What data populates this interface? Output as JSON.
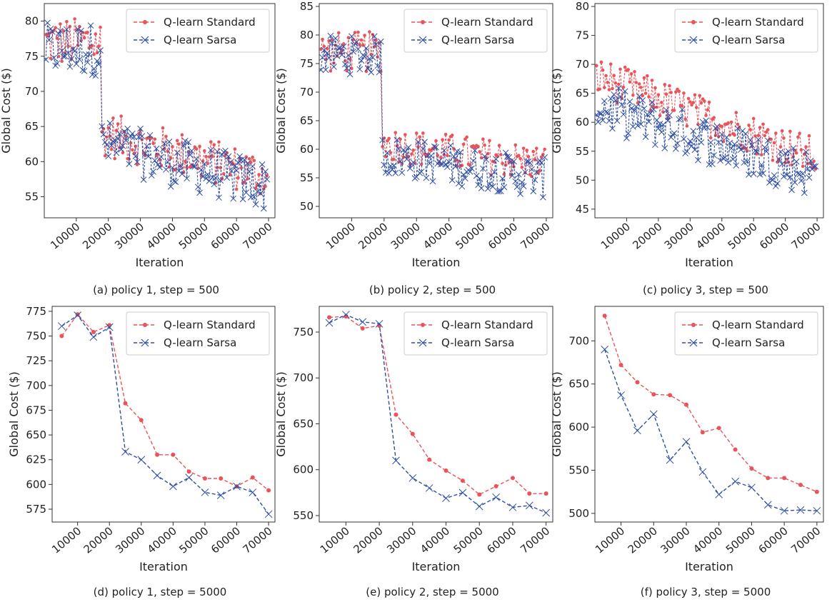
{
  "colors": {
    "standard": "#e8545a",
    "sarsa": "#2f4fa6",
    "frame": "#333333"
  },
  "chart_data": [
    {
      "type": "line",
      "caption": "(a) policy 1, step = 500",
      "xlabel": "Iteration",
      "ylabel": "Global Cost ($)",
      "xlim": [
        0,
        72000
      ],
      "ylim": [
        52,
        82.5
      ],
      "xticks": [
        10000,
        20000,
        30000,
        40000,
        50000,
        60000,
        70000
      ],
      "yticks": [
        55,
        60,
        65,
        70,
        75,
        80
      ],
      "legend": "top-right",
      "marker_every": 1,
      "series_source": {
        "kind": "sampled",
        "count": 139,
        "x_start": 500,
        "x_step": 500,
        "segments": [
          {
            "n": 35,
            "std": {
              "base": 77,
              "amp": 3.5,
              "trend": 0
            },
            "sarsa": {
              "base": 76,
              "amp": 3.8,
              "trend": 0
            }
          },
          {
            "n": 104,
            "std": {
              "base": 64,
              "amp": 3.2,
              "trend": -6
            },
            "sarsa": {
              "base": 62.5,
              "amp": 3.6,
              "trend": -6
            }
          }
        ]
      },
      "series": [
        {
          "name": "Q-learn Standard",
          "marker": "dot",
          "values": []
        },
        {
          "name": "Q-learn Sarsa",
          "marker": "x",
          "values": []
        }
      ]
    },
    {
      "type": "line",
      "caption": "(b) policy 2, step = 500",
      "xlabel": "Iteration",
      "ylabel": "Global Cost ($)",
      "xlim": [
        0,
        72000
      ],
      "ylim": [
        48,
        85.5
      ],
      "xticks": [
        10000,
        20000,
        30000,
        40000,
        50000,
        60000,
        70000
      ],
      "yticks": [
        50,
        55,
        60,
        65,
        70,
        75,
        80,
        85
      ],
      "legend": "top-right",
      "marker_every": 1,
      "series_source": {
        "kind": "sampled",
        "count": 139,
        "x_start": 500,
        "x_step": 500,
        "segments": [
          {
            "n": 38,
            "std": {
              "base": 77,
              "amp": 3.6,
              "trend": 0
            },
            "sarsa": {
              "base": 76.5,
              "amp": 3.4,
              "trend": 0
            }
          },
          {
            "n": 101,
            "std": {
              "base": 61,
              "amp": 3.2,
              "trend": -3.5
            },
            "sarsa": {
              "base": 59,
              "amp": 3.6,
              "trend": -4
            }
          }
        ]
      },
      "series": [
        {
          "name": "Q-learn Standard",
          "marker": "dot",
          "values": []
        },
        {
          "name": "Q-learn Sarsa",
          "marker": "x",
          "values": []
        }
      ]
    },
    {
      "type": "line",
      "caption": "(c) policy 3, step = 500",
      "xlabel": "Iteration",
      "ylabel": "Global Cost ($)",
      "xlim": [
        0,
        72000
      ],
      "ylim": [
        43.5,
        80.5
      ],
      "xticks": [
        10000,
        20000,
        30000,
        40000,
        50000,
        60000,
        70000
      ],
      "yticks": [
        45,
        50,
        55,
        60,
        65,
        70,
        75,
        80
      ],
      "legend": "top-right",
      "marker_every": 1,
      "series_source": {
        "kind": "sampled",
        "count": 139,
        "x_start": 500,
        "x_step": 500,
        "segments": [
          {
            "n": 139,
            "std": {
              "base": 68,
              "amp": 3.4,
              "trend": -14
            },
            "sarsa": {
              "base": 63,
              "amp": 4.2,
              "trend": -12
            }
          }
        ]
      },
      "series": [
        {
          "name": "Q-learn Standard",
          "marker": "dot",
          "values": []
        },
        {
          "name": "Q-learn Sarsa",
          "marker": "x",
          "values": []
        }
      ]
    },
    {
      "type": "line",
      "caption": "(d) policy 1, step = 5000",
      "xlabel": "Iteration",
      "ylabel": "Global Cost ($)",
      "xlim": [
        2000,
        72000
      ],
      "ylim": [
        562,
        780
      ],
      "xticks": [
        10000,
        20000,
        30000,
        40000,
        50000,
        60000,
        70000
      ],
      "yticks": [
        575,
        600,
        625,
        650,
        675,
        700,
        725,
        750,
        775
      ],
      "legend": "top-right",
      "x": [
        5000,
        10000,
        15000,
        20000,
        25000,
        30000,
        35000,
        40000,
        45000,
        50000,
        55000,
        60000,
        65000,
        70000
      ],
      "series": [
        {
          "name": "Q-learn Standard",
          "marker": "dot",
          "values": [
            750,
            772,
            754,
            761,
            682,
            665,
            630,
            630,
            613,
            606,
            606,
            598,
            607,
            594
          ]
        },
        {
          "name": "Q-learn Sarsa",
          "marker": "x",
          "values": [
            760,
            771,
            749,
            759,
            633,
            625,
            609,
            598,
            607,
            592,
            589,
            598,
            592,
            570
          ]
        }
      ]
    },
    {
      "type": "line",
      "caption": "(e) policy 2, step = 5000",
      "xlabel": "Iteration",
      "ylabel": "Global Cost ($)",
      "xlim": [
        2000,
        72000
      ],
      "ylim": [
        543,
        778
      ],
      "xticks": [
        10000,
        20000,
        30000,
        40000,
        50000,
        60000,
        70000
      ],
      "yticks": [
        550,
        600,
        650,
        700,
        750
      ],
      "legend": "top-right",
      "x": [
        5000,
        10000,
        15000,
        20000,
        25000,
        30000,
        35000,
        40000,
        45000,
        50000,
        55000,
        60000,
        65000,
        70000
      ],
      "series": [
        {
          "name": "Q-learn Standard",
          "marker": "dot",
          "values": [
            766,
            767,
            754,
            757,
            660,
            639,
            611,
            599,
            588,
            573,
            582,
            591,
            574,
            574
          ]
        },
        {
          "name": "Q-learn Sarsa",
          "marker": "x",
          "values": [
            760,
            769,
            761,
            759,
            610,
            591,
            580,
            569,
            575,
            560,
            570,
            559,
            561,
            553
          ]
        }
      ]
    },
    {
      "type": "line",
      "caption": "(f) policy 3, step = 5000",
      "xlabel": "Iteration",
      "ylabel": "Global Cost ($)",
      "xlim": [
        2000,
        72000
      ],
      "ylim": [
        490,
        740
      ],
      "xticks": [
        10000,
        20000,
        30000,
        40000,
        50000,
        60000,
        70000
      ],
      "yticks": [
        500,
        550,
        600,
        650,
        700
      ],
      "legend": "top-right",
      "x": [
        5000,
        10000,
        15000,
        20000,
        25000,
        30000,
        35000,
        40000,
        45000,
        50000,
        55000,
        60000,
        65000,
        70000
      ],
      "series": [
        {
          "name": "Q-learn Standard",
          "marker": "dot",
          "values": [
            729,
            672,
            652,
            638,
            637,
            626,
            594,
            599,
            574,
            552,
            541,
            541,
            533,
            525
          ]
        },
        {
          "name": "Q-learn Sarsa",
          "marker": "x",
          "values": [
            690,
            637,
            596,
            615,
            562,
            583,
            548,
            522,
            537,
            530,
            510,
            503,
            504,
            503
          ]
        }
      ]
    }
  ]
}
